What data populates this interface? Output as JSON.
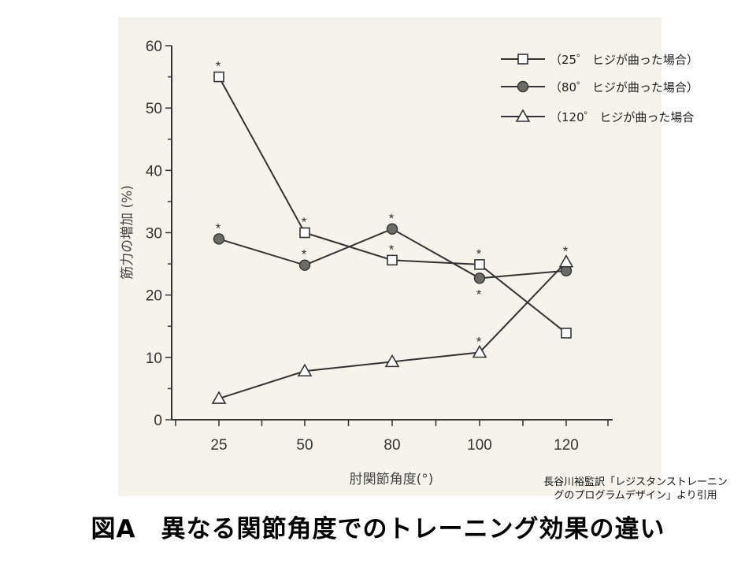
{
  "figure": {
    "title": "図A　異なる関節角度でのトレーニング効果の違い",
    "source_note": [
      "長谷川裕監訳「レジスタンストレーニン",
      "グのプログラムデザイン」より引用"
    ]
  },
  "chart_data": {
    "type": "line",
    "title": "",
    "xlabel": "肘関節角度(°)",
    "ylabel": "筋力の増加 (%)",
    "categories": [
      "25",
      "50",
      "80",
      "100",
      "120"
    ],
    "ylim": [
      0,
      60
    ],
    "yticks": [
      0,
      10,
      20,
      30,
      40,
      50,
      60
    ],
    "grid": false,
    "legend_position": "top-right",
    "series": [
      {
        "name": "（25゜ ヒジが曲った場合）",
        "marker": "square-open",
        "values": [
          55,
          30,
          25.6,
          24.9,
          13.9
        ],
        "significant": [
          true,
          true,
          true,
          true,
          false
        ]
      },
      {
        "name": "（80゜ ヒジが曲った場合）",
        "marker": "circle-filled",
        "values": [
          29,
          24.8,
          30.6,
          22.7,
          23.9
        ],
        "significant": [
          true,
          true,
          true,
          true,
          false
        ]
      },
      {
        "name": "（120゜ ヒジが曲った場合",
        "marker": "triangle-open",
        "values": [
          3.4,
          7.8,
          9.3,
          10.8,
          25.3
        ],
        "significant": [
          false,
          false,
          false,
          true,
          true
        ]
      }
    ],
    "annotation_symbol": "*",
    "colors": {
      "line": "#333333",
      "circle_fill": "#6b6b68",
      "panel": "#f6f3ec"
    }
  }
}
